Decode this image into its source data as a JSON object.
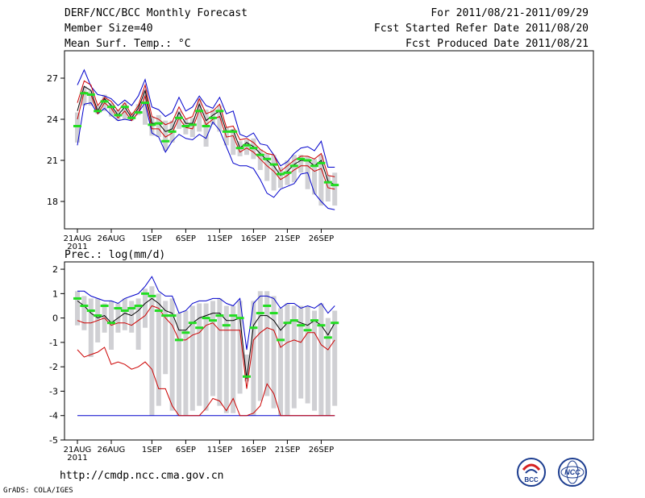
{
  "header": {
    "title": "DERF/NCC/BCC Monthly Forecast",
    "member_size": "Member Size=40",
    "variable_top": "Mean Surf. Temp.: °C",
    "variable_bottom": "Prec.: log(mm/d)",
    "period": "For 2011/08/21-2011/09/29",
    "started": "Fcst Started Refer Date 2011/08/20",
    "produced": "Fcst Produced Date 2011/08/21"
  },
  "footer": {
    "url": "http://cmdp.ncc.cma.gov.cn",
    "grads": "GrADS: COLA/IGES",
    "logo1_text": "BCC",
    "logo2_text": "NCC"
  },
  "colors": {
    "envelope": "#0000cc",
    "spread": "#cc0000",
    "mean": "#000000",
    "median": "#22dd22",
    "box": "#d0d0d4"
  },
  "chart_data": [
    {
      "type": "box",
      "title": "Mean Surf. Temp.: °C",
      "x_ticks": [
        "21AUG",
        "26AUG",
        "1SEP",
        "6SEP",
        "11SEP",
        "16SEP",
        "21SEP",
        "26SEP"
      ],
      "x_tick_day": [
        0,
        5,
        11,
        16,
        21,
        26,
        31,
        36
      ],
      "x_sublabel": "2011",
      "ylim": [
        16,
        29
      ],
      "y_ticks": [
        18,
        21,
        24,
        27
      ],
      "days": 39,
      "upper_env": [
        26.5,
        27.6,
        26.4,
        25.8,
        25.7,
        25.5,
        25.0,
        25.4,
        25.0,
        25.7,
        26.9,
        24.9,
        24.7,
        24.2,
        24.5,
        25.6,
        24.6,
        24.9,
        25.7,
        25.0,
        24.8,
        25.6,
        24.4,
        24.6,
        22.9,
        22.7,
        23.0,
        22.2,
        22.1,
        21.4,
        20.6,
        20.9,
        21.5,
        21.9,
        22.0,
        21.7,
        22.4,
        20.5,
        20.5
      ],
      "upper_sd": [
        25.2,
        26.8,
        26.5,
        25.0,
        25.6,
        25.3,
        24.6,
        25.2,
        24.3,
        25.0,
        26.5,
        24.2,
        24.0,
        23.6,
        23.8,
        24.9,
        24.0,
        24.2,
        25.5,
        24.4,
        24.6,
        25.1,
        23.4,
        23.5,
        22.5,
        22.6,
        22.3,
        21.8,
        21.5,
        21.4,
        20.2,
        20.6,
        21.0,
        21.3,
        21.3,
        21.1,
        21.5,
        19.9,
        19.8
      ],
      "mean": [
        24.6,
        26.4,
        26.1,
        24.6,
        25.5,
        25.0,
        24.3,
        24.9,
        24.1,
        24.8,
        26.1,
        23.7,
        23.7,
        23.1,
        23.3,
        24.5,
        23.7,
        23.7,
        25.1,
        23.9,
        24.3,
        24.6,
        23.1,
        23.2,
        21.9,
        22.3,
        22.0,
        21.5,
        21.0,
        20.6,
        19.9,
        20.2,
        20.7,
        21.0,
        21.0,
        20.6,
        21.0,
        19.5,
        19.2
      ],
      "lower_sd": [
        24.0,
        26.0,
        25.8,
        24.4,
        25.2,
        24.8,
        24.1,
        24.6,
        23.9,
        24.5,
        25.7,
        23.3,
        23.3,
        22.7,
        23.0,
        24.1,
        23.4,
        23.3,
        24.7,
        23.6,
        24.0,
        24.2,
        22.7,
        22.8,
        21.6,
        21.9,
        21.6,
        21.1,
        20.6,
        20.2,
        19.6,
        19.9,
        20.3,
        20.6,
        20.6,
        20.2,
        20.4,
        19.0,
        18.9
      ],
      "lower_env": [
        22.1,
        25.1,
        25.2,
        24.4,
        24.8,
        24.3,
        23.9,
        24.0,
        23.9,
        24.5,
        25.2,
        23.0,
        22.7,
        21.6,
        22.4,
        22.9,
        22.6,
        22.5,
        22.9,
        22.6,
        23.8,
        23.2,
        22.0,
        20.8,
        20.6,
        20.6,
        20.4,
        19.6,
        18.6,
        18.3,
        18.9,
        19.1,
        19.3,
        20.0,
        20.1,
        18.6,
        18.0,
        17.5,
        17.4
      ],
      "box_low": [
        22.3,
        25.0,
        25.0,
        24.4,
        24.6,
        24.2,
        23.9,
        24.0,
        23.9,
        24.3,
        23.6,
        22.8,
        22.7,
        21.7,
        22.3,
        23.3,
        22.9,
        22.7,
        23.1,
        22.0,
        23.6,
        23.1,
        22.1,
        21.4,
        21.3,
        21.4,
        21.1,
        20.3,
        19.5,
        18.8,
        19.0,
        19.2,
        19.4,
        20.1,
        18.9,
        18.5,
        17.7,
        18.0,
        17.7
      ],
      "box_high": [
        24.5,
        26.4,
        26.1,
        25.0,
        25.8,
        25.2,
        24.7,
        25.2,
        24.5,
        25.1,
        26.1,
        24.2,
        24.3,
        23.9,
        23.9,
        24.6,
        24.0,
        24.1,
        25.5,
        24.7,
        24.7,
        25.0,
        23.4,
        23.3,
        22.4,
        22.5,
        22.6,
        21.8,
        21.5,
        21.4,
        20.5,
        21.0,
        21.4,
        21.4,
        21.3,
        21.1,
        21.4,
        19.9,
        20.1
      ],
      "median": [
        23.5,
        25.9,
        25.8,
        24.6,
        25.3,
        24.9,
        24.3,
        24.9,
        24.1,
        24.5,
        25.2,
        23.6,
        23.7,
        22.4,
        23.1,
        24.1,
        23.5,
        23.6,
        24.6,
        23.5,
        24.1,
        24.6,
        23.1,
        23.1,
        21.9,
        22.1,
        21.9,
        21.4,
        21.1,
        20.7,
        20.0,
        20.1,
        20.6,
        21.1,
        21.0,
        20.6,
        20.8,
        19.4,
        19.2
      ]
    },
    {
      "type": "box",
      "title": "Prec.: log(mm/d)",
      "x_ticks": [
        "21AUG",
        "26AUG",
        "1SEP",
        "6SEP",
        "11SEP",
        "16SEP",
        "21SEP",
        "26SEP"
      ],
      "x_tick_day": [
        0,
        5,
        11,
        16,
        21,
        26,
        31,
        36
      ],
      "x_sublabel": "2011",
      "ylim": [
        -5,
        2.3
      ],
      "y_ticks": [
        -5,
        -4,
        -3,
        -2,
        -1,
        0,
        1,
        2
      ],
      "days": 39,
      "upper_env": [
        1.1,
        1.1,
        0.9,
        0.8,
        0.7,
        0.7,
        0.6,
        0.8,
        0.9,
        1.0,
        1.3,
        1.7,
        1.1,
        0.9,
        0.9,
        0.2,
        0.3,
        0.6,
        0.7,
        0.7,
        0.8,
        0.8,
        0.6,
        0.5,
        0.8,
        -1.3,
        0.6,
        0.9,
        0.9,
        0.8,
        0.4,
        0.6,
        0.6,
        0.4,
        0.5,
        0.4,
        0.6,
        0.2,
        0.5
      ],
      "mean": [
        0.7,
        0.5,
        0.2,
        0.0,
        0.1,
        -0.2,
        0.0,
        0.2,
        0.1,
        0.3,
        0.6,
        0.8,
        0.6,
        0.3,
        0.2,
        -0.5,
        -0.5,
        -0.2,
        0.0,
        0.1,
        0.2,
        0.2,
        -0.1,
        -0.1,
        0.0,
        -2.5,
        -0.3,
        0.1,
        0.1,
        -0.1,
        -0.5,
        -0.2,
        -0.1,
        -0.2,
        -0.3,
        -0.1,
        -0.3,
        -0.7,
        -0.2
      ],
      "upper_sd": [
        -0.1,
        -0.2,
        -0.2,
        -0.1,
        0.0,
        -0.3,
        -0.2,
        -0.2,
        -0.3,
        -0.1,
        0.1,
        0.5,
        0.4,
        0.0,
        -0.3,
        -0.9,
        -0.9,
        -0.7,
        -0.6,
        -0.3,
        -0.2,
        -0.5,
        -0.5,
        -0.5,
        -0.5,
        -2.9,
        -0.9,
        -0.6,
        -0.4,
        -0.5,
        -1.2,
        -1.0,
        -0.9,
        -1.0,
        -0.6,
        -0.6,
        -1.1,
        -1.3,
        -0.9
      ],
      "lower_sd": [
        -1.3,
        -1.6,
        -1.5,
        -1.4,
        -1.2,
        -1.9,
        -1.8,
        -1.9,
        -2.1,
        -2.0,
        -1.8,
        -2.1,
        -2.9,
        -2.9,
        -3.6,
        -4.0,
        -4.0,
        -4.0,
        -4.0,
        -3.7,
        -3.3,
        -3.4,
        -3.8,
        -3.3,
        -4.0,
        -4.0,
        -3.9,
        -3.6,
        -2.7,
        -3.1,
        -4.0,
        -4.0,
        -4.0,
        -4.0,
        -4.0,
        -4.0,
        -4.0,
        -4.0,
        -4.0
      ],
      "lower_env": [
        -4.0,
        -4.0,
        -4.0,
        -4.0,
        -4.0,
        -4.0,
        -4.0,
        -4.0,
        -4.0,
        -4.0,
        -4.0,
        -4.0,
        -4.0,
        -4.0,
        -4.0,
        -4.0,
        -4.0,
        -4.0,
        -4.0,
        -4.0,
        -4.0,
        -4.0,
        -4.0,
        -4.0,
        -4.0,
        -4.0,
        -4.0,
        -4.0,
        -4.0,
        -4.0,
        -4.0,
        -4.0,
        -4.0,
        -4.0,
        -4.0,
        -4.0,
        -4.0,
        -4.0,
        -4.0
      ],
      "box_low": [
        -0.3,
        -0.5,
        -1.6,
        -1.0,
        -0.6,
        -1.3,
        -0.6,
        -0.5,
        -0.6,
        -1.3,
        -0.4,
        -4.0,
        -3.6,
        -2.3,
        -3.8,
        -4.0,
        -4.0,
        -3.8,
        -3.6,
        -3.8,
        -3.2,
        -3.6,
        -3.9,
        -3.9,
        -3.1,
        -2.6,
        -4.0,
        -3.4,
        -3.2,
        -3.7,
        -4.0,
        -4.0,
        -3.7,
        -3.3,
        -3.5,
        -3.8,
        -4.0,
        -4.0,
        -3.6
      ],
      "box_high": [
        1.1,
        0.9,
        0.8,
        0.8,
        0.6,
        0.7,
        0.6,
        0.8,
        0.7,
        0.8,
        1.2,
        1.3,
        1.0,
        0.7,
        0.8,
        0.2,
        0.3,
        0.5,
        0.6,
        0.6,
        0.7,
        0.8,
        0.5,
        0.5,
        0.7,
        -1.5,
        0.7,
        1.1,
        1.1,
        0.9,
        0.4,
        0.6,
        0.5,
        0.5,
        0.5,
        0.3,
        0.6,
        0.0,
        0.3
      ],
      "median": [
        0.8,
        0.5,
        0.3,
        0.1,
        0.5,
        -0.2,
        0.4,
        0.3,
        0.4,
        0.5,
        1.0,
        0.9,
        0.3,
        0.1,
        0.1,
        -0.9,
        -0.6,
        -0.2,
        -0.4,
        0.0,
        -0.1,
        0.1,
        -0.3,
        0.1,
        0.0,
        -2.4,
        -0.4,
        0.2,
        0.5,
        0.2,
        -0.9,
        -0.2,
        -0.1,
        -0.3,
        -0.5,
        -0.1,
        -0.3,
        -0.8,
        -0.2
      ]
    }
  ]
}
